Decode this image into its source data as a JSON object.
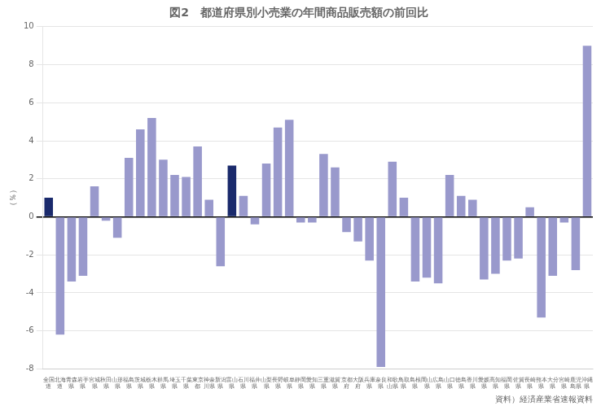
{
  "chart_data": {
    "type": "bar",
    "title": "図2　都道府県別小売業の年間商品販売額の前回比",
    "ylabel": "（％）",
    "annotations": [
      "資料）経済産業省速報資料"
    ],
    "categories": [
      "全国\n道",
      "北海\n道",
      "青森\n県",
      "岩手\n県",
      "宮城\n県",
      "秋田\n県",
      "山形\n県",
      "福島\n県",
      "茨城\n県",
      "栃木\n県",
      "群馬\n県",
      "埼玉\n県",
      "千葉\n県",
      "東京\n都",
      "神奈\n川県",
      "新潟\n県",
      "富山\n県",
      "石川\n県",
      "福井\n県",
      "山梨\n県",
      "長野\n県",
      "岐阜\n県",
      "静岡\n県",
      "愛知\n県",
      "三重\n県",
      "滋賀\n県",
      "京都\n府",
      "大阪\n府",
      "兵庫\n県",
      "奈良\n県",
      "和歌\n山県",
      "鳥取\n県",
      "島根\n県",
      "岡山\n県",
      "広島\n県",
      "山口\n県",
      "徳島\n県",
      "香川\n県",
      "愛媛\n県",
      "高知\n県",
      "福岡\n県",
      "佐賀\n県",
      "長崎\n県",
      "熊本\n県",
      "大分\n県",
      "宮崎\n県",
      "鹿児\n島県",
      "沖縄\n県"
    ],
    "values": [
      1.0,
      -6.2,
      -3.4,
      -3.1,
      1.6,
      -0.2,
      -1.1,
      3.1,
      4.6,
      5.2,
      3.0,
      2.2,
      2.1,
      3.7,
      0.9,
      -2.6,
      2.7,
      1.1,
      -0.4,
      2.8,
      4.7,
      5.1,
      -0.3,
      -0.3,
      3.3,
      2.6,
      -0.8,
      -1.3,
      -2.3,
      -7.9,
      2.9,
      1.0,
      -3.4,
      -3.2,
      -3.5,
      2.2,
      1.1,
      0.9,
      -3.3,
      -3.0,
      -2.3,
      -2.2,
      0.5,
      -5.3,
      -3.1,
      -0.3,
      -2.8,
      9.0
    ],
    "colors": [
      "#1a2a6c",
      "#9999cc",
      "#9999cc",
      "#9999cc",
      "#9999cc",
      "#9999cc",
      "#9999cc",
      "#9999cc",
      "#9999cc",
      "#9999cc",
      "#9999cc",
      "#9999cc",
      "#9999cc",
      "#9999cc",
      "#9999cc",
      "#9999cc",
      "#1a2a6c",
      "#9999cc",
      "#9999cc",
      "#9999cc",
      "#9999cc",
      "#9999cc",
      "#9999cc",
      "#9999cc",
      "#9999cc",
      "#9999cc",
      "#9999cc",
      "#9999cc",
      "#9999cc",
      "#9999cc",
      "#9999cc",
      "#9999cc",
      "#9999cc",
      "#9999cc",
      "#9999cc",
      "#9999cc",
      "#9999cc",
      "#9999cc",
      "#9999cc",
      "#9999cc",
      "#9999cc",
      "#9999cc",
      "#9999cc",
      "#9999cc",
      "#9999cc",
      "#9999cc",
      "#9999cc",
      "#9999cc"
    ],
    "ylim": [
      -8,
      10
    ],
    "yticks": [
      -8,
      -6,
      -4,
      -2,
      0,
      2,
      4,
      6,
      8,
      10
    ],
    "grid": true
  }
}
